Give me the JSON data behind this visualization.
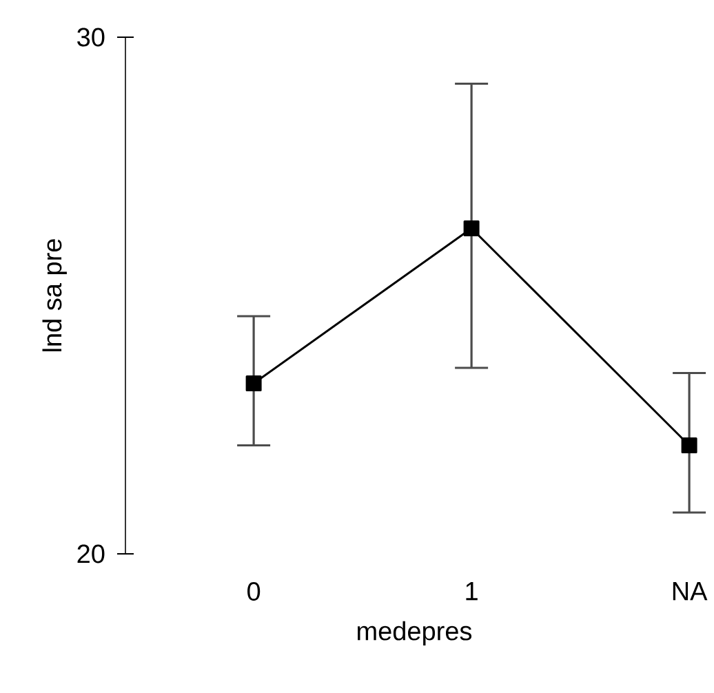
{
  "chart_data": {
    "type": "line",
    "xlabel": "medepres",
    "ylabel": "lnd sa pre",
    "categories": [
      "0",
      "1",
      "NA"
    ],
    "series": [
      {
        "color": "#000000",
        "values": [
          23.3,
          26.3,
          22.1
        ],
        "errors": [
          [
            22.1,
            24.6
          ],
          [
            23.6,
            29.1
          ],
          [
            20.8,
            23.5
          ]
        ]
      }
    ],
    "ylim": [
      20,
      30
    ],
    "yticks": [
      20,
      30
    ],
    "grid": false,
    "marker": "square",
    "line_style": "solid"
  }
}
